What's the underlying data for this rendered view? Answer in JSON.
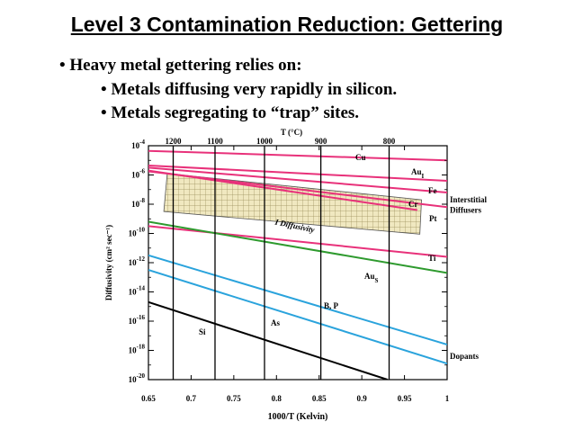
{
  "slide": {
    "title": "Level 3 Contamination Reduction: Gettering",
    "bullets": [
      "• Heavy metal gettering relies on:",
      "• Metals diffusing very rapidly in silicon.",
      "• Metals segregating to “trap” sites."
    ]
  },
  "colors": {
    "interstitial": "#e8317a",
    "dopant": "#2aa3dc",
    "au_s": "#2e9a2e",
    "si": "#000000",
    "hatch_fill": "#f0e8c0"
  },
  "chart_data": {
    "type": "line",
    "title": "",
    "xlabel": "1000/T (Kelvin)",
    "ylabel": "Diffusivity (cm² sec⁻¹)",
    "top_axis_label": "T (°C)",
    "xlim": [
      0.65,
      1.0
    ],
    "ylim_log10": [
      -20,
      -4
    ],
    "x_ticks": [
      {
        "v": 0.65,
        "label": "0.65"
      },
      {
        "v": 0.7,
        "label": "0.7"
      },
      {
        "v": 0.75,
        "label": "0.75"
      },
      {
        "v": 0.8,
        "label": "0.8"
      },
      {
        "v": 0.85,
        "label": "0.85"
      },
      {
        "v": 0.9,
        "label": "0.9"
      },
      {
        "v": 0.95,
        "label": "0.95"
      },
      {
        "v": 1.0,
        "label": "1"
      }
    ],
    "y_ticks": [
      {
        "exp": -4,
        "label": "10",
        "sup": "-4"
      },
      {
        "exp": -6,
        "label": "10",
        "sup": "-6"
      },
      {
        "exp": -8,
        "label": "10",
        "sup": "-8"
      },
      {
        "exp": -10,
        "label": "10",
        "sup": "-10"
      },
      {
        "exp": -12,
        "label": "10",
        "sup": "-12"
      },
      {
        "exp": -14,
        "label": "10",
        "sup": "-14"
      },
      {
        "exp": -16,
        "label": "10",
        "sup": "-16"
      },
      {
        "exp": -18,
        "label": "10",
        "sup": "-18"
      },
      {
        "exp": -20,
        "label": "10",
        "sup": "-20"
      }
    ],
    "temp_lines": [
      {
        "x": 0.679,
        "label": "1200"
      },
      {
        "x": 0.728,
        "label": "1100"
      },
      {
        "x": 0.786,
        "label": "1000"
      },
      {
        "x": 0.852,
        "label": "900"
      },
      {
        "x": 0.932,
        "label": "800"
      }
    ],
    "series": [
      {
        "name": "Cu",
        "group": "interstitial",
        "x": [
          0.65,
          1.0
        ],
        "log10_y": [
          -4.35,
          -5.0
        ]
      },
      {
        "name": "Au",
        "sub": "I",
        "group": "interstitial",
        "x": [
          0.65,
          1.0
        ],
        "log10_y": [
          -5.35,
          -6.4
        ]
      },
      {
        "name": "Fe",
        "group": "interstitial",
        "x": [
          0.65,
          1.0
        ],
        "log10_y": [
          -5.5,
          -7.2
        ]
      },
      {
        "name": "Cr",
        "group": "interstitial",
        "x": [
          0.65,
          1.0
        ],
        "log10_y": [
          -5.75,
          -8.2
        ]
      },
      {
        "name": "Pt",
        "group": "interstitial",
        "x": [
          0.65,
          0.965
        ],
        "log10_y": [
          -5.7,
          -8.4
        ]
      },
      {
        "name": "Ti",
        "group": "interstitial",
        "x": [
          0.65,
          1.0
        ],
        "log10_y": [
          -9.5,
          -11.6
        ]
      },
      {
        "name": "Au",
        "sub": "S",
        "group": "au_s",
        "x": [
          0.65,
          1.0
        ],
        "log10_y": [
          -9.2,
          -12.7
        ]
      },
      {
        "name": "B, P",
        "group": "dopant",
        "x": [
          0.65,
          1.0
        ],
        "log10_y": [
          -11.5,
          -17.6
        ]
      },
      {
        "name": "As",
        "group": "dopant",
        "x": [
          0.65,
          1.0
        ],
        "log10_y": [
          -12.5,
          -18.9
        ]
      },
      {
        "name": "Si",
        "group": "si",
        "x": [
          0.65,
          0.93
        ],
        "log10_y": [
          -14.7,
          -20.0
        ]
      }
    ],
    "hatched_band": {
      "label": "I Diffusivity",
      "polygon": [
        [
          0.672,
          -5.9
        ],
        [
          0.97,
          -7.7
        ],
        [
          0.968,
          -10.05
        ],
        [
          0.668,
          -8.5
        ]
      ]
    },
    "annotations": [
      {
        "text": "Interstitial",
        "x": 1.0,
        "log10_y": -7.7
      },
      {
        "text": "Diffusers",
        "x": 1.0,
        "log10_y": -8.4
      },
      {
        "text": "Dopants",
        "x": 1.0,
        "log10_y": -18.4
      }
    ]
  }
}
